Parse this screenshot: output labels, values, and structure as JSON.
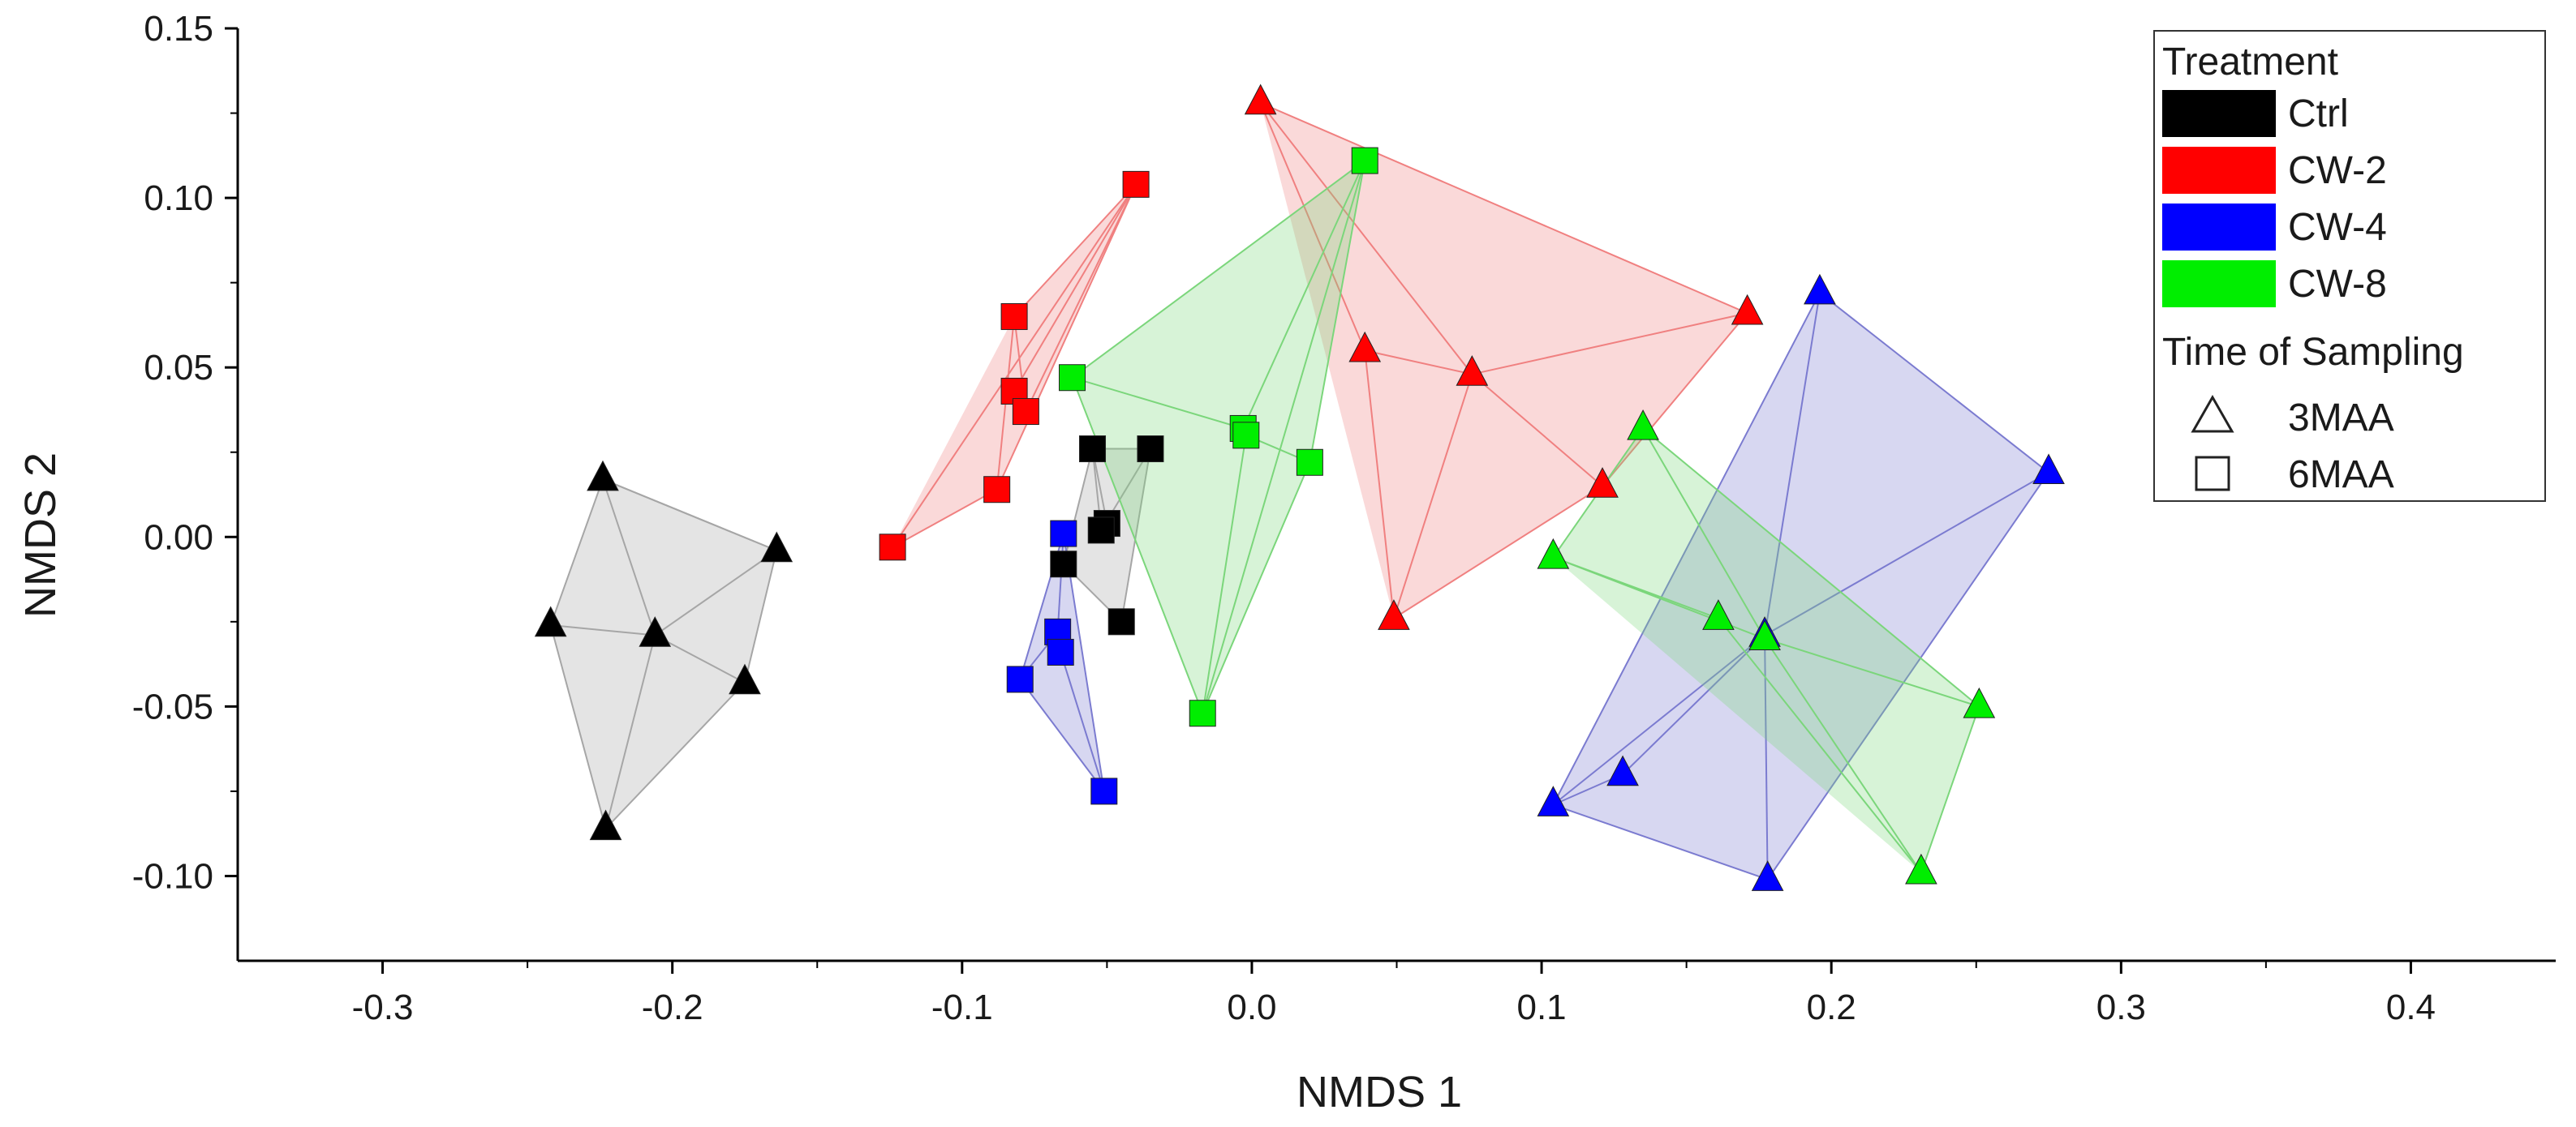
{
  "chart_data": {
    "type": "scatter",
    "title": "",
    "xlabel": "NMDS 1",
    "ylabel": "NMDS 2",
    "xlim": [
      -0.35,
      0.45
    ],
    "ylim": [
      -0.125,
      0.15
    ],
    "xticks": [
      -0.3,
      -0.2,
      -0.1,
      0.0,
      0.1,
      0.2,
      0.3,
      0.4
    ],
    "xtick_labels": [
      "-0.3",
      "-0.2",
      "-0.1",
      "0.0",
      "0.1",
      "0.2",
      "0.3",
      "0.4"
    ],
    "yticks": [
      0.15,
      0.1,
      0.05,
      0.0,
      -0.05,
      -0.1
    ],
    "ytick_labels": [
      "0.15",
      "0.10",
      "0.05",
      "0.00",
      "-0.05",
      "-0.10"
    ],
    "grid": false,
    "legend_position": "top-right",
    "legend": {
      "title_treatment": "Treatment",
      "title_time": "Time of Sampling",
      "treatments": [
        {
          "label": "Ctrl",
          "color": "#000000"
        },
        {
          "label": "CW-2",
          "color": "#ff0000"
        },
        {
          "label": "CW-4",
          "color": "#0000ff"
        },
        {
          "label": "CW-8",
          "color": "#00ee00"
        }
      ],
      "times": [
        {
          "label": "3MAA",
          "shape": "triangle"
        },
        {
          "label": "6MAA",
          "shape": "square"
        }
      ]
    },
    "series": [
      {
        "name": "Ctrl",
        "time": "3MAA",
        "shape": "triangle",
        "color": "#000000",
        "fill": "#a6a6a6",
        "points": [
          [
            -0.224,
            0.017
          ],
          [
            -0.164,
            -0.004
          ],
          [
            -0.242,
            -0.026
          ],
          [
            -0.206,
            -0.029
          ],
          [
            -0.175,
            -0.043
          ],
          [
            -0.223,
            -0.086
          ]
        ],
        "edges": [
          [
            0,
            1
          ],
          [
            1,
            4
          ],
          [
            4,
            5
          ],
          [
            5,
            2
          ],
          [
            2,
            0
          ],
          [
            0,
            3
          ],
          [
            3,
            2
          ],
          [
            3,
            5
          ],
          [
            3,
            1
          ],
          [
            3,
            4
          ],
          [
            0,
            1
          ]
        ]
      },
      {
        "name": "CW-2",
        "time": "3MAA",
        "shape": "triangle",
        "color": "#ff0000",
        "fill": "#f08080",
        "points": [
          [
            0.003,
            0.128
          ],
          [
            0.171,
            0.066
          ],
          [
            0.039,
            0.055
          ],
          [
            0.076,
            0.048
          ],
          [
            0.121,
            0.015
          ],
          [
            0.049,
            -0.024
          ]
        ],
        "edges": [
          [
            0,
            1
          ],
          [
            1,
            4
          ],
          [
            4,
            5
          ],
          [
            5,
            2
          ],
          [
            2,
            0
          ],
          [
            0,
            3
          ],
          [
            3,
            1
          ],
          [
            3,
            4
          ],
          [
            3,
            5
          ],
          [
            2,
            3
          ]
        ]
      },
      {
        "name": "CW-4",
        "time": "3MAA",
        "shape": "triangle",
        "color": "#0000ff",
        "fill": "#7b7bd0",
        "points": [
          [
            0.196,
            0.072
          ],
          [
            0.275,
            0.019
          ],
          [
            0.177,
            -0.029
          ],
          [
            0.128,
            -0.07
          ],
          [
            0.104,
            -0.079
          ],
          [
            0.178,
            -0.101
          ]
        ],
        "edges": [
          [
            0,
            1
          ],
          [
            1,
            5
          ],
          [
            5,
            4
          ],
          [
            4,
            0
          ],
          [
            0,
            2
          ],
          [
            2,
            1
          ],
          [
            2,
            4
          ],
          [
            2,
            3
          ],
          [
            2,
            5
          ],
          [
            3,
            4
          ]
        ]
      },
      {
        "name": "CW-8",
        "time": "3MAA",
        "shape": "triangle",
        "color": "#00ee00",
        "fill": "#7bd67b",
        "points": [
          [
            0.135,
            0.032
          ],
          [
            0.104,
            -0.006
          ],
          [
            0.161,
            -0.024
          ],
          [
            0.177,
            -0.03
          ],
          [
            0.251,
            -0.05
          ],
          [
            0.231,
            -0.099
          ]
        ],
        "edges": [
          [
            0,
            4
          ],
          [
            4,
            5
          ],
          [
            5,
            2
          ],
          [
            2,
            1
          ],
          [
            1,
            0
          ],
          [
            0,
            3
          ],
          [
            3,
            5
          ],
          [
            1,
            3
          ],
          [
            3,
            4
          ]
        ]
      },
      {
        "name": "Ctrl",
        "time": "6MAA",
        "shape": "square",
        "color": "#000000",
        "fill": "#a6a6a6",
        "points": [
          [
            -0.055,
            0.026
          ],
          [
            -0.035,
            0.026
          ],
          [
            -0.05,
            0.004
          ],
          [
            -0.052,
            0.002
          ],
          [
            -0.065,
            -0.008
          ],
          [
            -0.045,
            -0.025
          ]
        ],
        "edges": [
          [
            0,
            1
          ],
          [
            1,
            5
          ],
          [
            5,
            4
          ],
          [
            4,
            0
          ],
          [
            0,
            2
          ],
          [
            2,
            3
          ],
          [
            3,
            1
          ],
          [
            0,
            3
          ]
        ]
      },
      {
        "name": "CW-2",
        "time": "6MAA",
        "shape": "square",
        "color": "#ff0000",
        "fill": "#f08080",
        "points": [
          [
            -0.04,
            0.104
          ],
          [
            -0.082,
            0.065
          ],
          [
            -0.082,
            0.043
          ],
          [
            -0.078,
            0.037
          ],
          [
            -0.088,
            0.014
          ],
          [
            -0.124,
            -0.003
          ]
        ],
        "edges": [
          [
            0,
            5
          ],
          [
            5,
            4
          ],
          [
            4,
            1
          ],
          [
            1,
            0
          ],
          [
            0,
            2
          ],
          [
            2,
            3
          ],
          [
            3,
            0
          ],
          [
            1,
            3
          ],
          [
            4,
            0
          ]
        ]
      },
      {
        "name": "CW-4",
        "time": "6MAA",
        "shape": "square",
        "color": "#0000ff",
        "fill": "#7b7bd0",
        "points": [
          [
            -0.065,
            0.001
          ],
          [
            -0.067,
            -0.028
          ],
          [
            -0.066,
            -0.034
          ],
          [
            -0.08,
            -0.042
          ],
          [
            -0.051,
            -0.075
          ]
        ],
        "edges": [
          [
            0,
            4
          ],
          [
            4,
            3
          ],
          [
            3,
            0
          ],
          [
            0,
            1
          ],
          [
            1,
            2
          ],
          [
            2,
            4
          ],
          [
            1,
            3
          ]
        ]
      },
      {
        "name": "CW-8",
        "time": "6MAA",
        "shape": "square",
        "color": "#00ee00",
        "fill": "#7bd67b",
        "points": [
          [
            0.039,
            0.111
          ],
          [
            -0.062,
            0.047
          ],
          [
            -0.003,
            0.032
          ],
          [
            -0.002,
            0.03
          ],
          [
            0.02,
            0.022
          ],
          [
            -0.017,
            -0.052
          ]
        ],
        "edges": [
          [
            0,
            1
          ],
          [
            1,
            5
          ],
          [
            5,
            0
          ],
          [
            0,
            4
          ],
          [
            4,
            5
          ],
          [
            1,
            2
          ],
          [
            2,
            3
          ],
          [
            3,
            5
          ],
          [
            2,
            0
          ],
          [
            3,
            4
          ]
        ]
      }
    ]
  }
}
